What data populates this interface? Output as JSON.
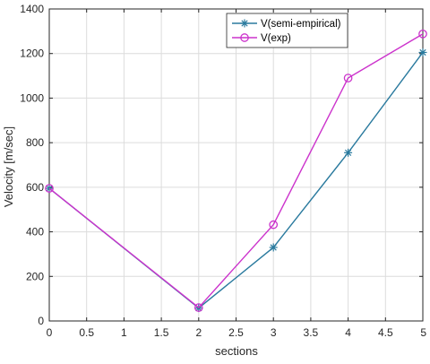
{
  "chart_data": {
    "type": "line",
    "title": "",
    "xlabel": "sections",
    "ylabel": "Velocity  [m/sec]",
    "xlim": [
      0,
      5
    ],
    "ylim": [
      0,
      1400
    ],
    "xticks": [
      0,
      0.5,
      1,
      1.5,
      2,
      2.5,
      3,
      3.5,
      4,
      4.5,
      5
    ],
    "xtick_labels": [
      "0",
      "0.5",
      "1",
      "1.5",
      "2",
      "2.5",
      "3",
      "3.5",
      "4",
      "4.5",
      "5"
    ],
    "yticks": [
      0,
      200,
      400,
      600,
      800,
      1000,
      1200,
      1400
    ],
    "ytick_labels": [
      "0",
      "200",
      "400",
      "600",
      "800",
      "1000",
      "1200",
      "1400"
    ],
    "grid": true,
    "legend_position": "top-right",
    "series": [
      {
        "name": "V(semi-empirical)",
        "color": "#2a7a9e",
        "marker": "asterisk",
        "x": [
          0,
          2,
          3,
          4,
          5
        ],
        "values": [
          595,
          58,
          330,
          755,
          1205
        ]
      },
      {
        "name": "V(exp)",
        "color": "#cc33cc",
        "marker": "circle",
        "x": [
          0,
          2,
          3,
          4,
          5
        ],
        "values": [
          595,
          60,
          432,
          1090,
          1288
        ]
      }
    ]
  }
}
